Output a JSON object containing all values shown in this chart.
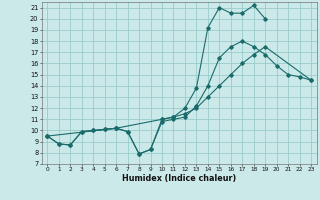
{
  "xlabel": "Humidex (Indice chaleur)",
  "bg_color": "#cce9e9",
  "grid_color": "#99cccc",
  "line_color": "#1a6b6b",
  "xlim": [
    -0.5,
    23.5
  ],
  "ylim": [
    7,
    21.5
  ],
  "xticks": [
    0,
    1,
    2,
    3,
    4,
    5,
    6,
    7,
    8,
    9,
    10,
    11,
    12,
    13,
    14,
    15,
    16,
    17,
    18,
    19,
    20,
    21,
    22,
    23
  ],
  "yticks": [
    7,
    8,
    9,
    10,
    11,
    12,
    13,
    14,
    15,
    16,
    17,
    18,
    19,
    20,
    21
  ],
  "line1_x": [
    0,
    1,
    2,
    3,
    4,
    5,
    6,
    7,
    8,
    9,
    10,
    11,
    12,
    13,
    14,
    15,
    16,
    17,
    18,
    19,
    20,
    21,
    22,
    23
  ],
  "line1_y": [
    9.5,
    8.8,
    8.7,
    9.9,
    10.0,
    10.1,
    10.2,
    9.9,
    7.9,
    8.3,
    10.8,
    11.0,
    11.2,
    12.2,
    14.0,
    16.5,
    17.5,
    18.0,
    17.5,
    16.8,
    15.8,
    15.0,
    14.8,
    14.5
  ],
  "line2_x": [
    0,
    1,
    2,
    3,
    4,
    5,
    6,
    7,
    8,
    9,
    10,
    11,
    12,
    13,
    14,
    15,
    16,
    17,
    18,
    19
  ],
  "line2_y": [
    9.5,
    8.8,
    8.7,
    9.9,
    10.0,
    10.1,
    10.2,
    9.9,
    7.9,
    8.3,
    11.0,
    11.2,
    12.0,
    13.8,
    19.2,
    21.0,
    20.5,
    20.5,
    21.2,
    20.0
  ],
  "line3_x": [
    0,
    6,
    10,
    11,
    12,
    13,
    14,
    15,
    16,
    17,
    18,
    19,
    23
  ],
  "line3_y": [
    9.5,
    10.2,
    11.0,
    11.2,
    11.5,
    12.0,
    13.0,
    14.0,
    15.0,
    16.0,
    16.8,
    17.5,
    14.5
  ]
}
